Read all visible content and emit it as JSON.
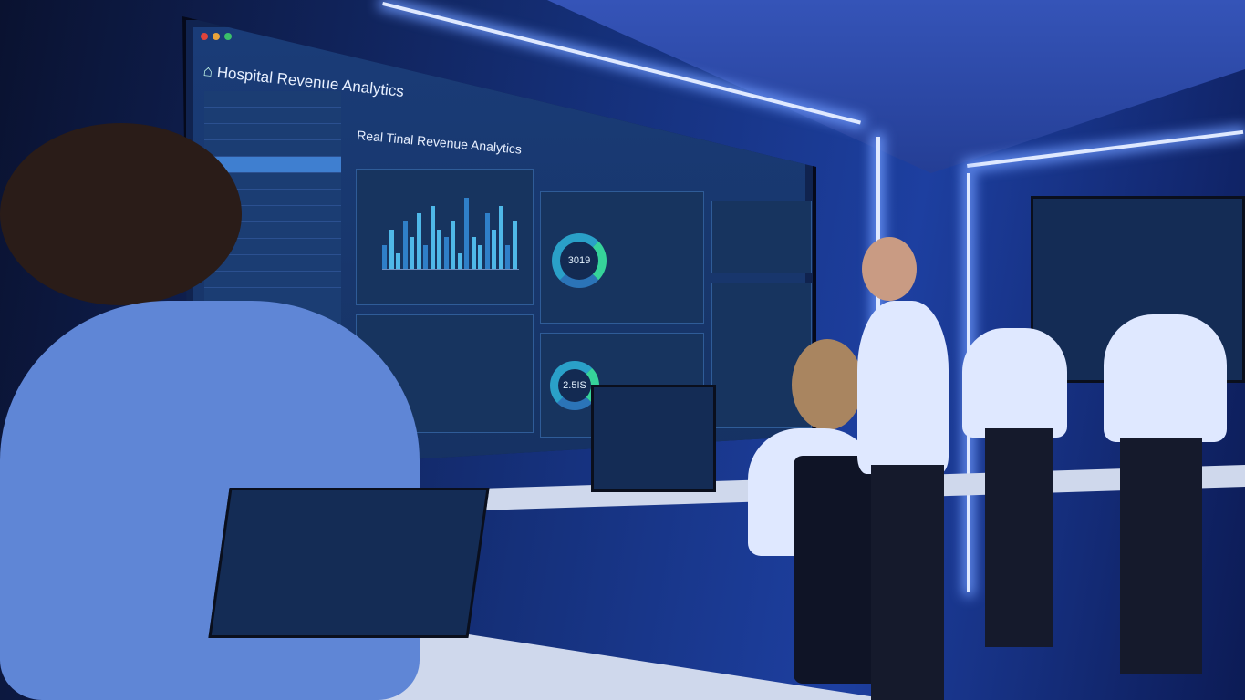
{
  "wall_screen": {
    "app_title": "Hospital Revenue Analytics",
    "main_heading": "Real Tinal Revenue Analytics",
    "donut_values": [
      "3019",
      "2.5IS"
    ]
  },
  "colors": {
    "accent": "#36d39a",
    "bar": "#4fb8e8",
    "room": "#1d3fa0"
  },
  "chart_data": {
    "type": "bar",
    "values": [
      3,
      5,
      2,
      6,
      4,
      7,
      3,
      8,
      5,
      4,
      6,
      2,
      9,
      4,
      3,
      7,
      5,
      8,
      3,
      6
    ]
  }
}
